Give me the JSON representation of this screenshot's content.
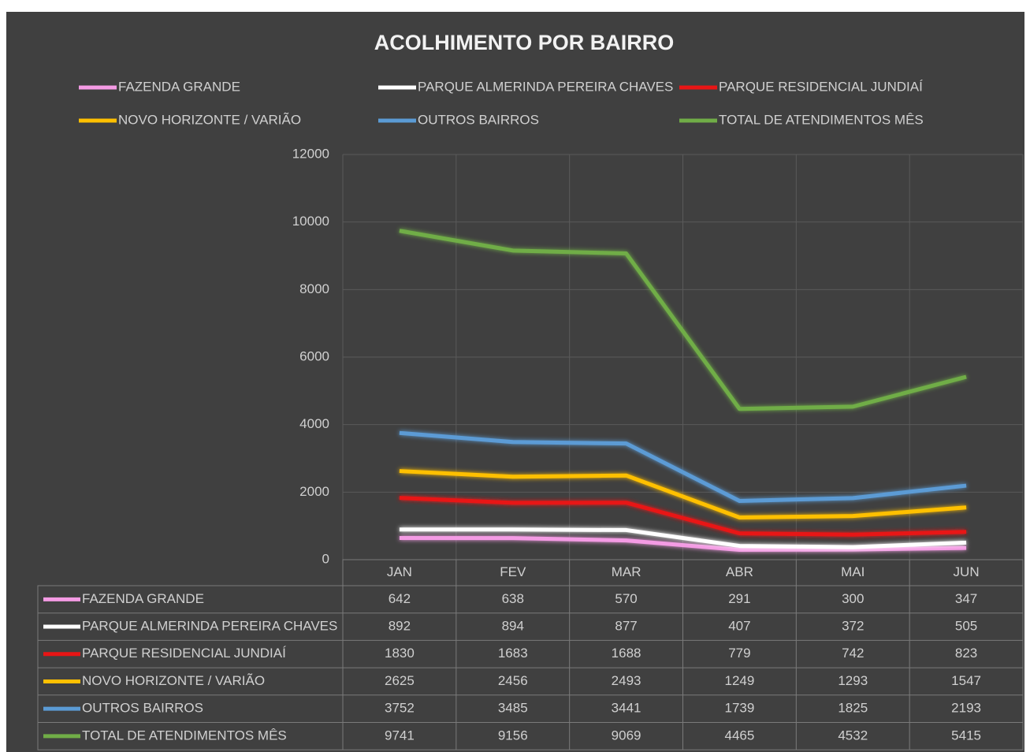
{
  "chart_data": {
    "type": "line",
    "title": "ACOLHIMENTO POR BAIRRO",
    "categories": [
      "JAN",
      "FEV",
      "MAR",
      "ABR",
      "MAI",
      "JUN"
    ],
    "series": [
      {
        "name": "FAZENDA GRANDE",
        "color": "#f49be4",
        "values": [
          642,
          638,
          570,
          291,
          300,
          347
        ]
      },
      {
        "name": "PARQUE ALMERINDA PEREIRA CHAVES",
        "color": "#ffffff",
        "values": [
          892,
          894,
          877,
          407,
          372,
          505
        ]
      },
      {
        "name": "PARQUE RESIDENCIAL JUNDIAÍ",
        "color": "#e81515",
        "values": [
          1830,
          1683,
          1688,
          779,
          742,
          823
        ]
      },
      {
        "name": "NOVO HORIZONTE / VARIÃO",
        "color": "#ffc000",
        "values": [
          2625,
          2456,
          2493,
          1249,
          1293,
          1547
        ]
      },
      {
        "name": "OUTROS BAIRROS",
        "color": "#5b9bd5",
        "values": [
          3752,
          3485,
          3441,
          1739,
          1825,
          2193
        ]
      },
      {
        "name": "TOTAL DE ATENDIMENTOS MÊS",
        "color": "#70ad47",
        "values": [
          9741,
          9156,
          9069,
          4465,
          4532,
          5415
        ]
      }
    ],
    "ylim": [
      0,
      12000
    ],
    "yticks": [
      0,
      2000,
      4000,
      6000,
      8000,
      10000,
      12000
    ],
    "grid": true
  }
}
